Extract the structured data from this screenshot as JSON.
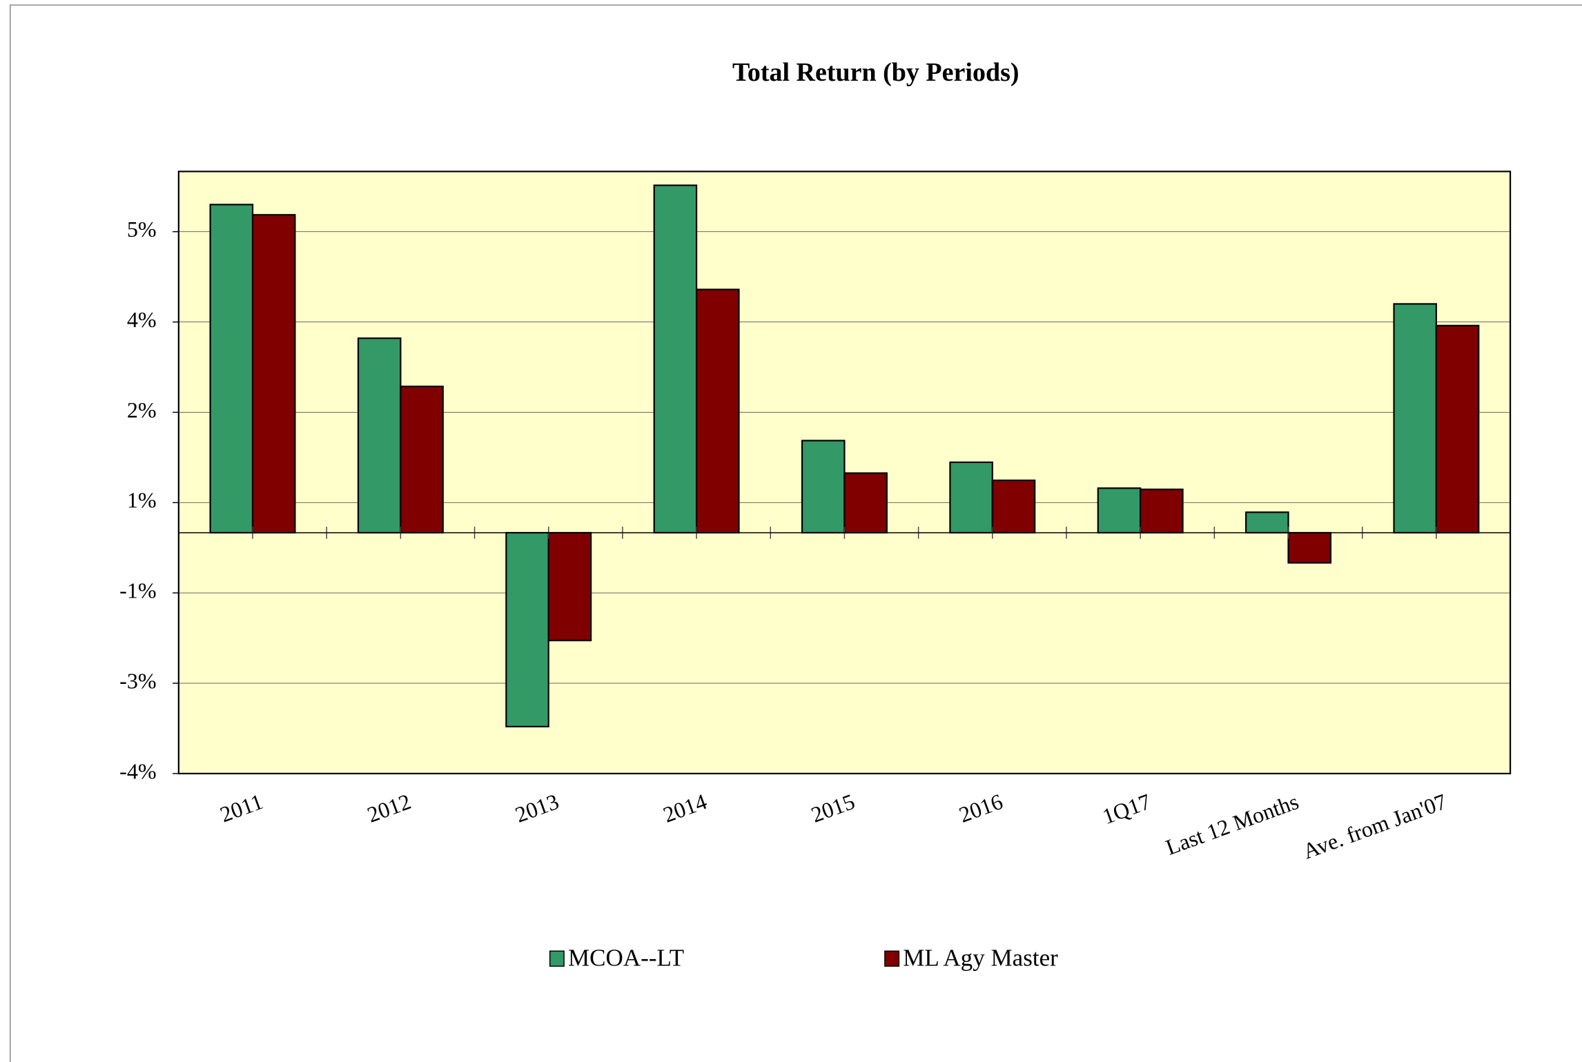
{
  "chart_data": {
    "type": "bar",
    "title": "Total Return (by Periods)",
    "categories": [
      "2011",
      "2012",
      "2013",
      "2014",
      "2015",
      "2016",
      "1Q17",
      "Last 12 Months",
      "Ave. from Jan'07"
    ],
    "series": [
      {
        "name": "MCOA--LT",
        "color": "#339966",
        "values": [
          5.45,
          3.23,
          -3.22,
          5.77,
          1.53,
          1.17,
          0.74,
          0.34,
          3.8
        ]
      },
      {
        "name": "ML Agy Master",
        "color": "#800000",
        "values": [
          5.28,
          2.43,
          -1.79,
          4.04,
          0.99,
          0.87,
          0.72,
          -0.5,
          3.44
        ]
      }
    ],
    "ylim": [
      -4,
      6
    ],
    "yticks": [
      {
        "value": -4,
        "label": "-4%"
      },
      {
        "value": -2.5,
        "label": "-3%"
      },
      {
        "value": -1,
        "label": "-1%"
      },
      {
        "value": 0.5,
        "label": "1%"
      },
      {
        "value": 2,
        "label": "2%"
      },
      {
        "value": 3.5,
        "label": "4%"
      },
      {
        "value": 5,
        "label": "5%"
      }
    ],
    "grid": true,
    "legend": "bottom",
    "plot_background": "#ffffcc"
  }
}
